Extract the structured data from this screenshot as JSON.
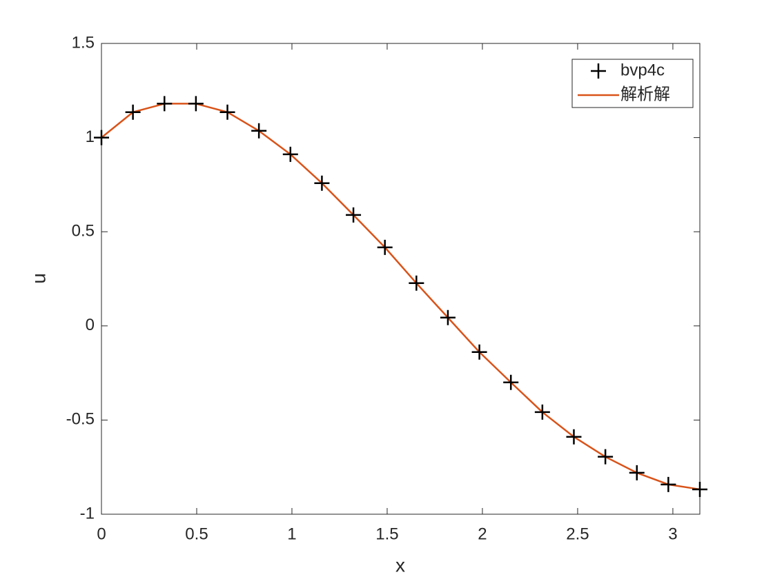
{
  "chart_data": {
    "type": "line",
    "xlabel": "x",
    "ylabel": "u",
    "x": [
      0,
      0.1653,
      0.3307,
      0.496,
      0.6614,
      0.8267,
      0.9921,
      1.1574,
      1.3228,
      1.4881,
      1.6535,
      1.8188,
      1.9842,
      2.1495,
      2.3149,
      2.4802,
      2.6456,
      2.8109,
      2.9762,
      3.1416
    ],
    "series": [
      {
        "name": "bvp4c",
        "color": "#000000",
        "style": "+",
        "values": [
          1,
          1.135,
          1.18,
          1.18,
          1.135,
          1.036,
          0.911,
          0.758,
          0.589,
          0.417,
          0.227,
          0.044,
          -0.139,
          -0.3,
          -0.458,
          -0.589,
          -0.695,
          -0.78,
          -0.842,
          -0.868
        ]
      },
      {
        "name": "解析解",
        "color": "#d95319",
        "style": "-",
        "values": [
          1,
          1.135,
          1.18,
          1.18,
          1.135,
          1.036,
          0.911,
          0.758,
          0.589,
          0.417,
          0.227,
          0.044,
          -0.139,
          -0.3,
          -0.458,
          -0.589,
          -0.695,
          -0.78,
          -0.842,
          -0.868
        ]
      }
    ],
    "xlim": [
      0,
      3.1416
    ],
    "xticks": [
      0,
      0.5,
      1,
      1.5,
      2,
      2.5,
      3
    ],
    "ylim": [
      -1,
      1.5
    ],
    "yticks": [
      -1,
      -0.5,
      0,
      0.5,
      1,
      1.5
    ],
    "legend": "northeast"
  }
}
